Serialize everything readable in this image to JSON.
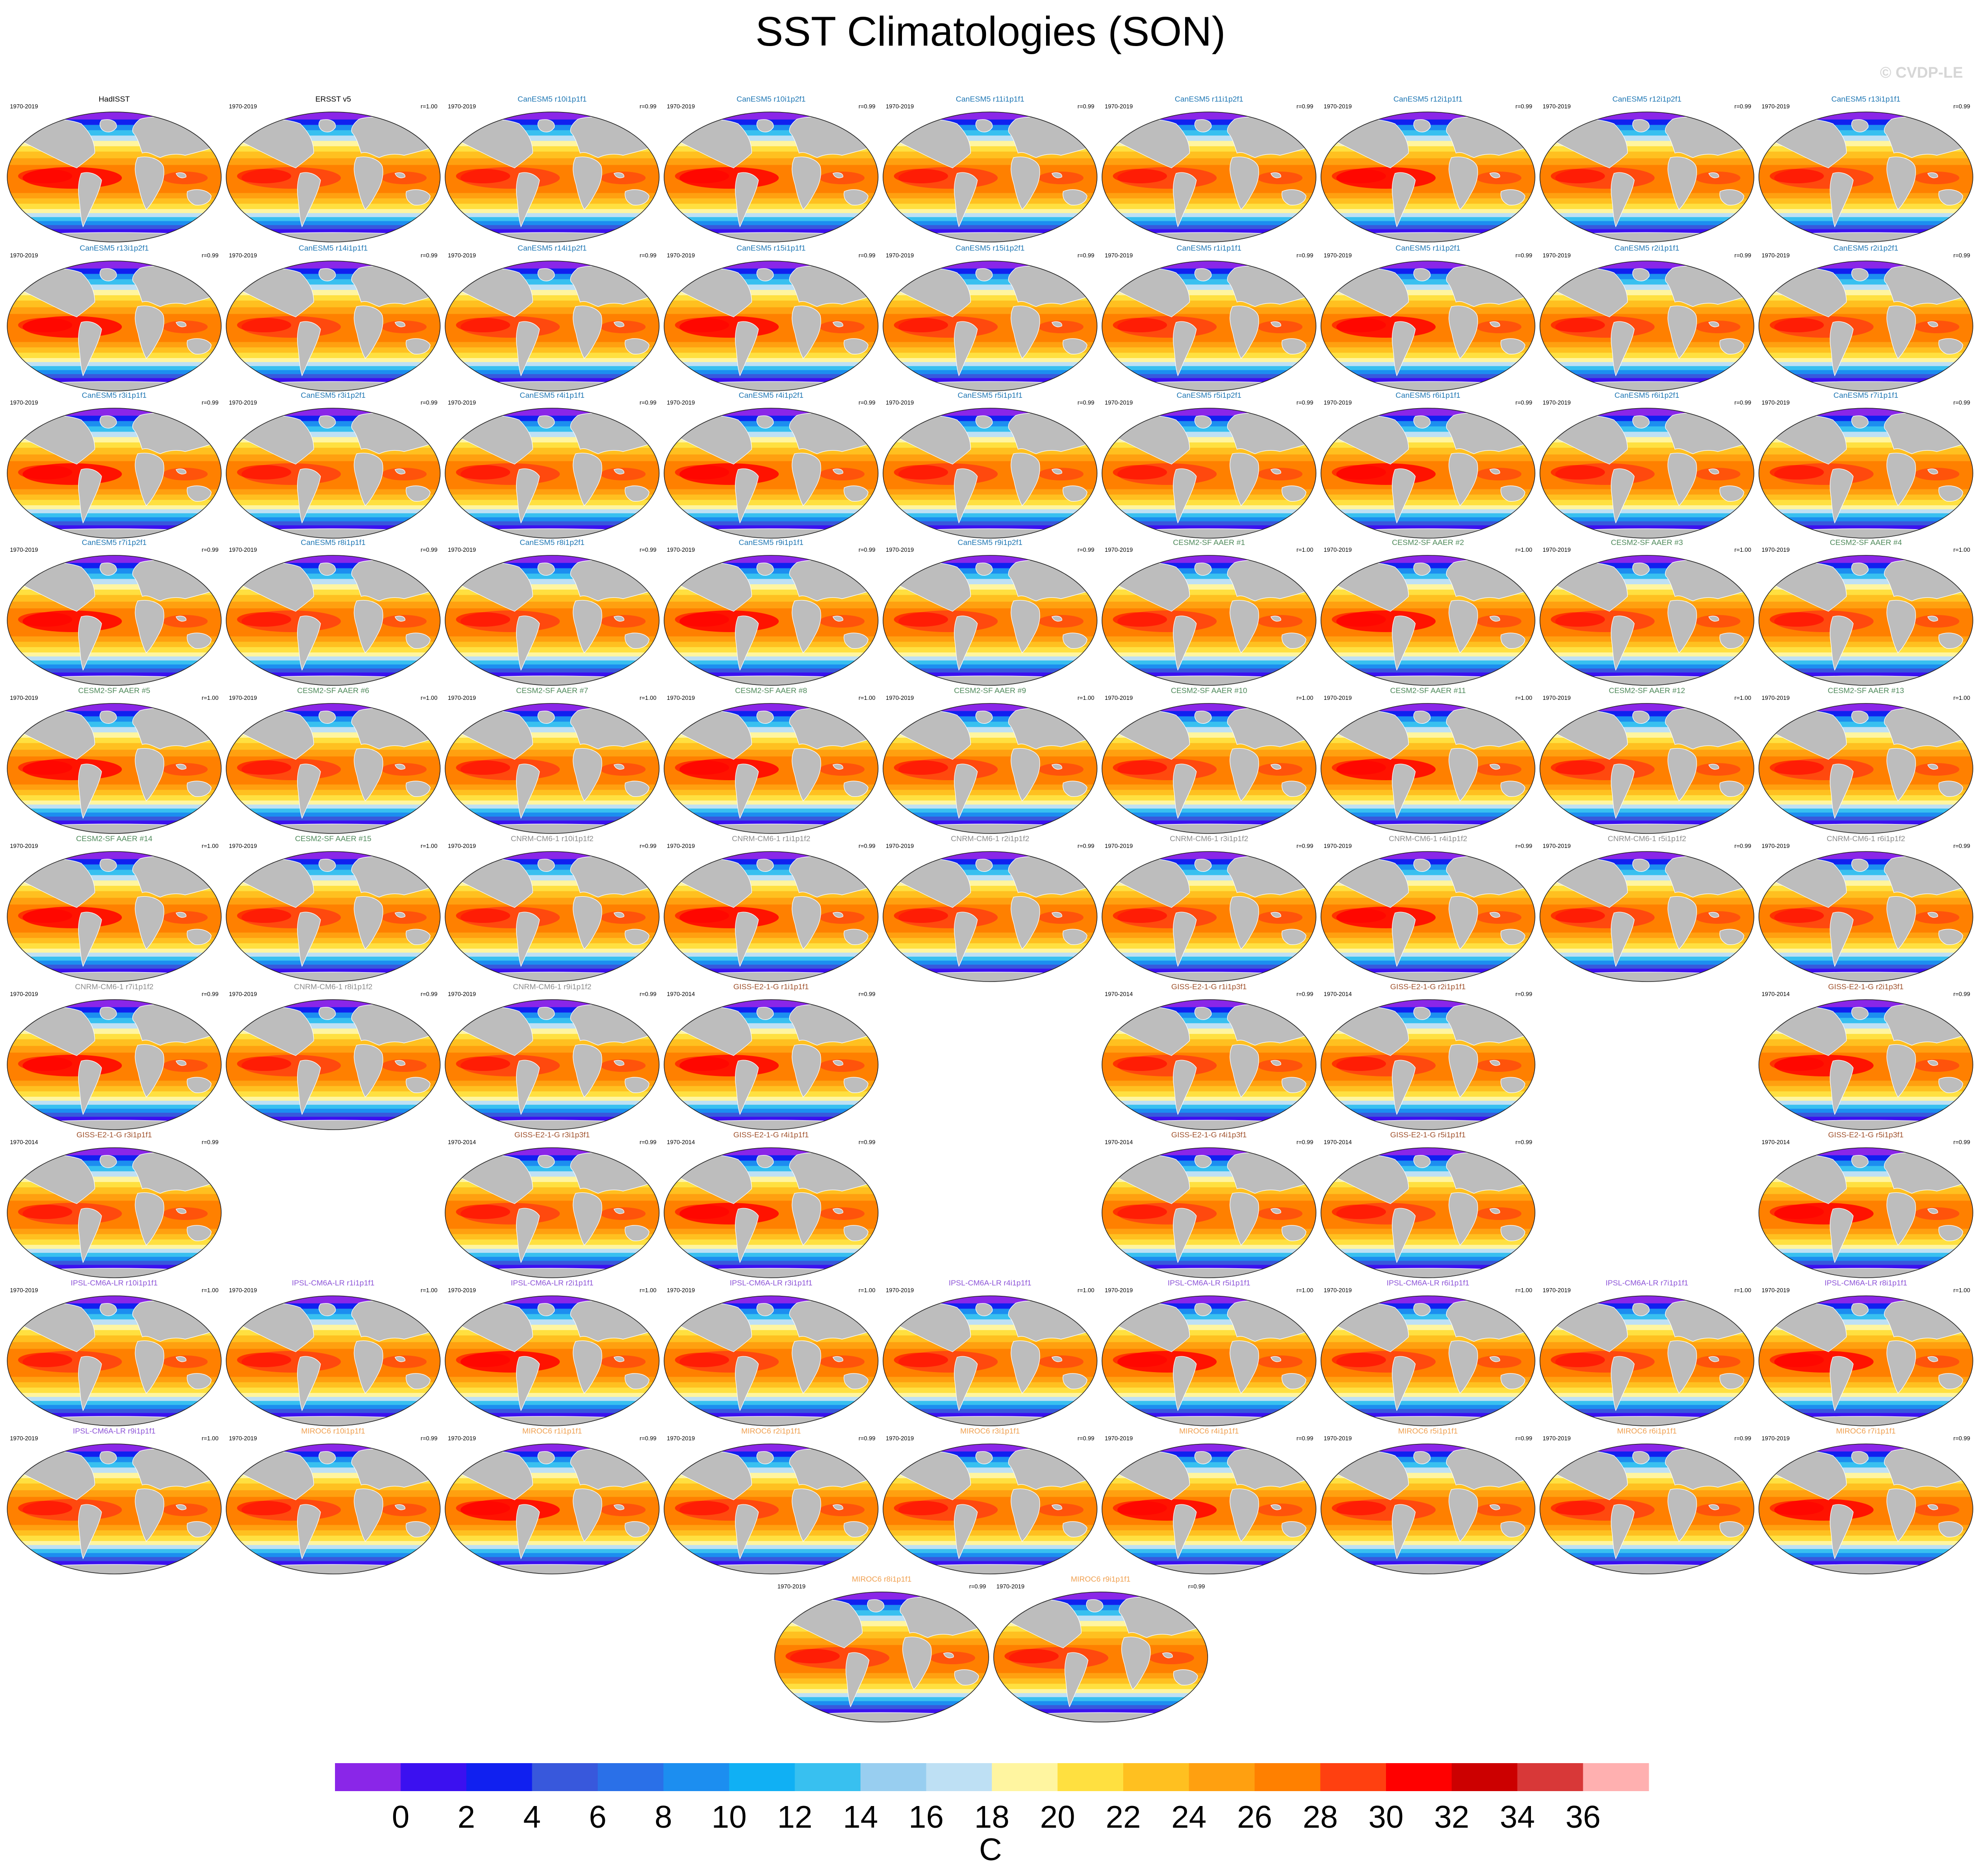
{
  "title": "SST Climatologies (SON)",
  "watermark": "© CVDP-LE",
  "colors": {
    "land": "#bdbdbd",
    "coast": "#ffffff",
    "group_text": {
      "obs": "#000000",
      "CanESM5": "#1f77b4",
      "CESM2-SF AAER": "#4f8a5b",
      "CNRM-CM6-1": "#8c8c8c",
      "GISS-E2-1-G": "#a0522d",
      "IPSL-CM6A-LR": "#8e55d8",
      "MIROC6": "#f0a050"
    }
  },
  "chart_data": {
    "type": "heatmap",
    "title": "SST Climatologies (SON)",
    "units": "C",
    "colorbar": {
      "colors": [
        "#8a26e8",
        "#3b10f0",
        "#1020f0",
        "#3858dc",
        "#2a70e8",
        "#1c8ef0",
        "#10b0f4",
        "#38c0f0",
        "#98cef0",
        "#bee0f4",
        "#fff5a0",
        "#ffe040",
        "#ffc020",
        "#ffa010",
        "#ff8000",
        "#ff4010",
        "#ff0000",
        "#cc0000",
        "#d83838",
        "#ffb0b0"
      ],
      "tick_labels": [
        "0",
        "2",
        "4",
        "6",
        "8",
        "10",
        "12",
        "14",
        "16",
        "18",
        "20",
        "22",
        "24",
        "26",
        "28",
        "30",
        "32",
        "34",
        "36"
      ],
      "label": "C"
    },
    "panels": [
      {
        "title": "HadISST",
        "group": "obs",
        "period": "1970-2019",
        "r": "",
        "slot": 0
      },
      {
        "title": "ERSST v5",
        "group": "obs",
        "period": "1970-2019",
        "r": "r=1.00",
        "slot": 1
      },
      {
        "title": "CanESM5 r10i1p1f1",
        "group": "CanESM5",
        "period": "1970-2019",
        "r": "r=0.99",
        "slot": 2
      },
      {
        "title": "CanESM5 r10i1p2f1",
        "group": "CanESM5",
        "period": "1970-2019",
        "r": "r=0.99",
        "slot": 3
      },
      {
        "title": "CanESM5 r11i1p1f1",
        "group": "CanESM5",
        "period": "1970-2019",
        "r": "r=0.99",
        "slot": 4
      },
      {
        "title": "CanESM5 r11i1p2f1",
        "group": "CanESM5",
        "period": "1970-2019",
        "r": "r=0.99",
        "slot": 5
      },
      {
        "title": "CanESM5 r12i1p1f1",
        "group": "CanESM5",
        "period": "1970-2019",
        "r": "r=0.99",
        "slot": 6
      },
      {
        "title": "CanESM5 r12i1p2f1",
        "group": "CanESM5",
        "period": "1970-2019",
        "r": "r=0.99",
        "slot": 7
      },
      {
        "title": "CanESM5 r13i1p1f1",
        "group": "CanESM5",
        "period": "1970-2019",
        "r": "r=0.99",
        "slot": 8
      },
      {
        "title": "CanESM5 r13i1p2f1",
        "group": "CanESM5",
        "period": "1970-2019",
        "r": "r=0.99",
        "slot": 9
      },
      {
        "title": "CanESM5 r14i1p1f1",
        "group": "CanESM5",
        "period": "1970-2019",
        "r": "r=0.99",
        "slot": 10
      },
      {
        "title": "CanESM5 r14i1p2f1",
        "group": "CanESM5",
        "period": "1970-2019",
        "r": "r=0.99",
        "slot": 11
      },
      {
        "title": "CanESM5 r15i1p1f1",
        "group": "CanESM5",
        "period": "1970-2019",
        "r": "r=0.99",
        "slot": 12
      },
      {
        "title": "CanESM5 r15i1p2f1",
        "group": "CanESM5",
        "period": "1970-2019",
        "r": "r=0.99",
        "slot": 13
      },
      {
        "title": "CanESM5 r1i1p1f1",
        "group": "CanESM5",
        "period": "1970-2019",
        "r": "r=0.99",
        "slot": 14
      },
      {
        "title": "CanESM5 r1i1p2f1",
        "group": "CanESM5",
        "period": "1970-2019",
        "r": "r=0.99",
        "slot": 15
      },
      {
        "title": "CanESM5 r2i1p1f1",
        "group": "CanESM5",
        "period": "1970-2019",
        "r": "r=0.99",
        "slot": 16
      },
      {
        "title": "CanESM5 r2i1p2f1",
        "group": "CanESM5",
        "period": "1970-2019",
        "r": "r=0.99",
        "slot": 17
      },
      {
        "title": "CanESM5 r3i1p1f1",
        "group": "CanESM5",
        "period": "1970-2019",
        "r": "r=0.99",
        "slot": 18
      },
      {
        "title": "CanESM5 r3i1p2f1",
        "group": "CanESM5",
        "period": "1970-2019",
        "r": "r=0.99",
        "slot": 19
      },
      {
        "title": "CanESM5 r4i1p1f1",
        "group": "CanESM5",
        "period": "1970-2019",
        "r": "r=0.99",
        "slot": 20
      },
      {
        "title": "CanESM5 r4i1p2f1",
        "group": "CanESM5",
        "period": "1970-2019",
        "r": "r=0.99",
        "slot": 21
      },
      {
        "title": "CanESM5 r5i1p1f1",
        "group": "CanESM5",
        "period": "1970-2019",
        "r": "r=0.99",
        "slot": 22
      },
      {
        "title": "CanESM5 r5i1p2f1",
        "group": "CanESM5",
        "period": "1970-2019",
        "r": "r=0.99",
        "slot": 23
      },
      {
        "title": "CanESM5 r6i1p1f1",
        "group": "CanESM5",
        "period": "1970-2019",
        "r": "r=0.99",
        "slot": 24
      },
      {
        "title": "CanESM5 r6i1p2f1",
        "group": "CanESM5",
        "period": "1970-2019",
        "r": "r=0.99",
        "slot": 25
      },
      {
        "title": "CanESM5 r7i1p1f1",
        "group": "CanESM5",
        "period": "1970-2019",
        "r": "r=0.99",
        "slot": 26
      },
      {
        "title": "CanESM5 r7i1p2f1",
        "group": "CanESM5",
        "period": "1970-2019",
        "r": "r=0.99",
        "slot": 27
      },
      {
        "title": "CanESM5 r8i1p1f1",
        "group": "CanESM5",
        "period": "1970-2019",
        "r": "r=0.99",
        "slot": 28
      },
      {
        "title": "CanESM5 r8i1p2f1",
        "group": "CanESM5",
        "period": "1970-2019",
        "r": "r=0.99",
        "slot": 29
      },
      {
        "title": "CanESM5 r9i1p1f1",
        "group": "CanESM5",
        "period": "1970-2019",
        "r": "r=0.99",
        "slot": 30
      },
      {
        "title": "CanESM5 r9i1p2f1",
        "group": "CanESM5",
        "period": "1970-2019",
        "r": "r=0.99",
        "slot": 31
      },
      {
        "title": "CESM2-SF AAER #1",
        "group": "CESM2-SF AAER",
        "period": "1970-2019",
        "r": "r=1.00",
        "slot": 32
      },
      {
        "title": "CESM2-SF AAER #2",
        "group": "CESM2-SF AAER",
        "period": "1970-2019",
        "r": "r=1.00",
        "slot": 33
      },
      {
        "title": "CESM2-SF AAER #3",
        "group": "CESM2-SF AAER",
        "period": "1970-2019",
        "r": "r=1.00",
        "slot": 34
      },
      {
        "title": "CESM2-SF AAER #4",
        "group": "CESM2-SF AAER",
        "period": "1970-2019",
        "r": "r=1.00",
        "slot": 35
      },
      {
        "title": "CESM2-SF AAER #5",
        "group": "CESM2-SF AAER",
        "period": "1970-2019",
        "r": "r=1.00",
        "slot": 36
      },
      {
        "title": "CESM2-SF AAER #6",
        "group": "CESM2-SF AAER",
        "period": "1970-2019",
        "r": "r=1.00",
        "slot": 37
      },
      {
        "title": "CESM2-SF AAER #7",
        "group": "CESM2-SF AAER",
        "period": "1970-2019",
        "r": "r=1.00",
        "slot": 38
      },
      {
        "title": "CESM2-SF AAER #8",
        "group": "CESM2-SF AAER",
        "period": "1970-2019",
        "r": "r=1.00",
        "slot": 39
      },
      {
        "title": "CESM2-SF AAER #9",
        "group": "CESM2-SF AAER",
        "period": "1970-2019",
        "r": "r=1.00",
        "slot": 40
      },
      {
        "title": "CESM2-SF AAER #10",
        "group": "CESM2-SF AAER",
        "period": "1970-2019",
        "r": "r=1.00",
        "slot": 41
      },
      {
        "title": "CESM2-SF AAER #11",
        "group": "CESM2-SF AAER",
        "period": "1970-2019",
        "r": "r=1.00",
        "slot": 42
      },
      {
        "title": "CESM2-SF AAER #12",
        "group": "CESM2-SF AAER",
        "period": "1970-2019",
        "r": "r=1.00",
        "slot": 43
      },
      {
        "title": "CESM2-SF AAER #13",
        "group": "CESM2-SF AAER",
        "period": "1970-2019",
        "r": "r=1.00",
        "slot": 44
      },
      {
        "title": "CESM2-SF AAER #14",
        "group": "CESM2-SF AAER",
        "period": "1970-2019",
        "r": "r=1.00",
        "slot": 45
      },
      {
        "title": "CESM2-SF AAER #15",
        "group": "CESM2-SF AAER",
        "period": "1970-2019",
        "r": "r=1.00",
        "slot": 46
      },
      {
        "title": "CNRM-CM6-1 r10i1p1f2",
        "group": "CNRM-CM6-1",
        "period": "1970-2019",
        "r": "r=0.99",
        "slot": 47
      },
      {
        "title": "CNRM-CM6-1 r1i1p1f2",
        "group": "CNRM-CM6-1",
        "period": "1970-2019",
        "r": "r=0.99",
        "slot": 48
      },
      {
        "title": "CNRM-CM6-1 r2i1p1f2",
        "group": "CNRM-CM6-1",
        "period": "1970-2019",
        "r": "r=0.99",
        "slot": 49
      },
      {
        "title": "CNRM-CM6-1 r3i1p1f2",
        "group": "CNRM-CM6-1",
        "period": "1970-2019",
        "r": "r=0.99",
        "slot": 50
      },
      {
        "title": "CNRM-CM6-1 r4i1p1f2",
        "group": "CNRM-CM6-1",
        "period": "1970-2019",
        "r": "r=0.99",
        "slot": 51
      },
      {
        "title": "CNRM-CM6-1 r5i1p1f2",
        "group": "CNRM-CM6-1",
        "period": "1970-2019",
        "r": "r=0.99",
        "slot": 52
      },
      {
        "title": "CNRM-CM6-1 r6i1p1f2",
        "group": "CNRM-CM6-1",
        "period": "1970-2019",
        "r": "r=0.99",
        "slot": 53
      },
      {
        "title": "CNRM-CM6-1 r7i1p1f2",
        "group": "CNRM-CM6-1",
        "period": "1970-2019",
        "r": "r=0.99",
        "slot": 54
      },
      {
        "title": "CNRM-CM6-1 r8i1p1f2",
        "group": "CNRM-CM6-1",
        "period": "1970-2019",
        "r": "r=0.99",
        "slot": 55
      },
      {
        "title": "CNRM-CM6-1 r9i1p1f2",
        "group": "CNRM-CM6-1",
        "period": "1970-2019",
        "r": "r=0.99",
        "slot": 56
      },
      {
        "title": "GISS-E2-1-G r1i1p1f1",
        "group": "GISS-E2-1-G",
        "period": "1970-2014",
        "r": "r=0.99",
        "slot": 57
      },
      {
        "title": "GISS-E2-1-G r1i1p3f1",
        "group": "GISS-E2-1-G",
        "period": "1970-2014",
        "r": "r=0.99",
        "slot": 59
      },
      {
        "title": "GISS-E2-1-G r2i1p1f1",
        "group": "GISS-E2-1-G",
        "period": "1970-2014",
        "r": "r=0.99",
        "slot": 60
      },
      {
        "title": "GISS-E2-1-G r2i1p3f1",
        "group": "GISS-E2-1-G",
        "period": "1970-2014",
        "r": "r=0.99",
        "slot": 62
      },
      {
        "title": "GISS-E2-1-G r3i1p1f1",
        "group": "GISS-E2-1-G",
        "period": "1970-2014",
        "r": "r=0.99",
        "slot": 63
      },
      {
        "title": "GISS-E2-1-G r3i1p3f1",
        "group": "GISS-E2-1-G",
        "period": "1970-2014",
        "r": "r=0.99",
        "slot": 65
      },
      {
        "title": "GISS-E2-1-G r4i1p1f1",
        "group": "GISS-E2-1-G",
        "period": "1970-2014",
        "r": "r=0.99",
        "slot": 66
      },
      {
        "title": "GISS-E2-1-G r4i1p3f1",
        "group": "GISS-E2-1-G",
        "period": "1970-2014",
        "r": "r=0.99",
        "slot": 68
      },
      {
        "title": "GISS-E2-1-G r5i1p1f1",
        "group": "GISS-E2-1-G",
        "period": "1970-2014",
        "r": "r=0.99",
        "slot": 69
      },
      {
        "title": "GISS-E2-1-G r5i1p3f1",
        "group": "GISS-E2-1-G",
        "period": "1970-2014",
        "r": "r=0.99",
        "slot": 71
      },
      {
        "title": "IPSL-CM6A-LR r10i1p1f1",
        "group": "IPSL-CM6A-LR",
        "period": "1970-2019",
        "r": "r=1.00",
        "slot": 72
      },
      {
        "title": "IPSL-CM6A-LR r1i1p1f1",
        "group": "IPSL-CM6A-LR",
        "period": "1970-2019",
        "r": "r=1.00",
        "slot": 73
      },
      {
        "title": "IPSL-CM6A-LR r2i1p1f1",
        "group": "IPSL-CM6A-LR",
        "period": "1970-2019",
        "r": "r=1.00",
        "slot": 74
      },
      {
        "title": "IPSL-CM6A-LR r3i1p1f1",
        "group": "IPSL-CM6A-LR",
        "period": "1970-2019",
        "r": "r=1.00",
        "slot": 75
      },
      {
        "title": "IPSL-CM6A-LR r4i1p1f1",
        "group": "IPSL-CM6A-LR",
        "period": "1970-2019",
        "r": "r=1.00",
        "slot": 76
      },
      {
        "title": "IPSL-CM6A-LR r5i1p1f1",
        "group": "IPSL-CM6A-LR",
        "period": "1970-2019",
        "r": "r=1.00",
        "slot": 77
      },
      {
        "title": "IPSL-CM6A-LR r6i1p1f1",
        "group": "IPSL-CM6A-LR",
        "period": "1970-2019",
        "r": "r=1.00",
        "slot": 78
      },
      {
        "title": "IPSL-CM6A-LR r7i1p1f1",
        "group": "IPSL-CM6A-LR",
        "period": "1970-2019",
        "r": "r=1.00",
        "slot": 79
      },
      {
        "title": "IPSL-CM6A-LR r8i1p1f1",
        "group": "IPSL-CM6A-LR",
        "period": "1970-2019",
        "r": "r=1.00",
        "slot": 80
      },
      {
        "title": "IPSL-CM6A-LR r9i1p1f1",
        "group": "IPSL-CM6A-LR",
        "period": "1970-2019",
        "r": "r=1.00",
        "slot": 81
      },
      {
        "title": "MIROC6 r10i1p1f1",
        "group": "MIROC6",
        "period": "1970-2019",
        "r": "r=0.99",
        "slot": 82
      },
      {
        "title": "MIROC6 r1i1p1f1",
        "group": "MIROC6",
        "period": "1970-2019",
        "r": "r=0.99",
        "slot": 83
      },
      {
        "title": "MIROC6 r2i1p1f1",
        "group": "MIROC6",
        "period": "1970-2019",
        "r": "r=0.99",
        "slot": 84
      },
      {
        "title": "MIROC6 r3i1p1f1",
        "group": "MIROC6",
        "period": "1970-2019",
        "r": "r=0.99",
        "slot": 85
      },
      {
        "title": "MIROC6 r4i1p1f1",
        "group": "MIROC6",
        "period": "1970-2019",
        "r": "r=0.99",
        "slot": 86
      },
      {
        "title": "MIROC6 r5i1p1f1",
        "group": "MIROC6",
        "period": "1970-2019",
        "r": "r=0.99",
        "slot": 87
      },
      {
        "title": "MIROC6 r6i1p1f1",
        "group": "MIROC6",
        "period": "1970-2019",
        "r": "r=0.99",
        "slot": 88
      },
      {
        "title": "MIROC6 r7i1p1f1",
        "group": "MIROC6",
        "period": "1970-2019",
        "r": "r=0.99",
        "slot": 89
      },
      {
        "title": "MIROC6 r8i1p1f1",
        "group": "MIROC6",
        "period": "1970-2019",
        "r": "r=0.99",
        "slot": 90
      },
      {
        "title": "MIROC6 r9i1p1f1",
        "group": "MIROC6",
        "period": "1970-2019",
        "r": "r=0.99",
        "slot": 91
      }
    ]
  }
}
